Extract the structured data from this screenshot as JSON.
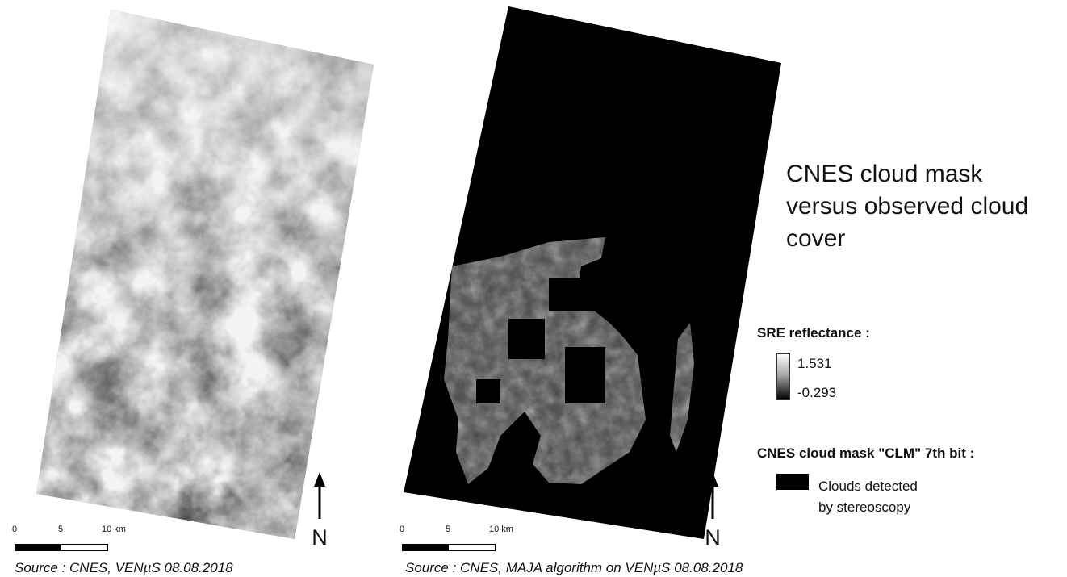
{
  "title": "CNES cloud mask versus observed cloud cover",
  "panels": {
    "left": {
      "scale": {
        "t0": "0",
        "t1": "5",
        "t2": "10 km"
      },
      "north": "N",
      "source": "Source : CNES, VENµS 08.08.2018"
    },
    "right": {
      "scale": {
        "t0": "0",
        "t1": "5",
        "t2": "10 km"
      },
      "north": "N",
      "source": "Source : CNES, MAJA algorithm on VENµS 08.08.2018"
    }
  },
  "legend": {
    "reflectance": {
      "heading": "SRE reflectance :",
      "max": "1.531",
      "min": "-0.293"
    },
    "cloud_mask": {
      "heading": "CNES cloud mask \"CLM\" 7th bit :",
      "label_line1": "Clouds detected",
      "label_line2": "by stereoscopy",
      "swatch_color": "#000000"
    }
  },
  "colors": {
    "background": "#ffffff",
    "mask": "#000000"
  }
}
